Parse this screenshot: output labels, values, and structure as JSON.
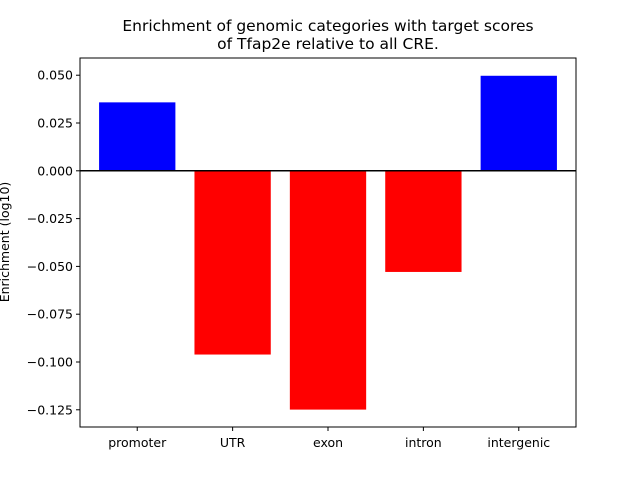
{
  "chart_data": {
    "type": "bar",
    "title_lines": [
      "Enrichment of genomic categories with target scores",
      "of Tfap2e relative to all CRE."
    ],
    "xlabel": "",
    "ylabel": "Enrichment (log10)",
    "categories": [
      "promoter",
      "UTR",
      "exon",
      "intron",
      "intergenic"
    ],
    "values": [
      0.0358,
      -0.0961,
      -0.1249,
      -0.0529,
      0.0497
    ],
    "colors": [
      "#0000ff",
      "#ff0000",
      "#ff0000",
      "#ff0000",
      "#0000ff"
    ],
    "ylim": [
      -0.134,
      0.059
    ],
    "yticks": [
      0.05,
      0.025,
      0.0,
      -0.025,
      -0.05,
      -0.075,
      -0.1,
      -0.125
    ],
    "ytick_labels": [
      "0.050",
      "0.025",
      "0.000",
      "−0.025",
      "−0.050",
      "−0.075",
      "−0.100",
      "−0.125"
    ],
    "zero_line": true,
    "grid": false,
    "legend": "none"
  }
}
